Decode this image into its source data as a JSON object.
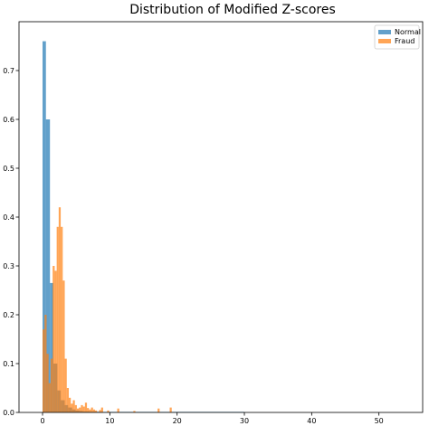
{
  "chart_data": {
    "type": "histogram",
    "title": "Distribution of Modified Z-scores",
    "xlim": [
      -3.5,
      56.5
    ],
    "ylim": [
      0,
      0.8
    ],
    "x_ticks": [
      0,
      10,
      20,
      30,
      40,
      50
    ],
    "y_ticks": [
      0.0,
      0.1,
      0.2,
      0.3,
      0.4,
      0.5,
      0.6,
      0.7
    ],
    "x_tick_labels": [
      "0",
      "10",
      "20",
      "30",
      "40",
      "50"
    ],
    "y_tick_labels": [
      "0.0",
      "0.1",
      "0.2",
      "0.3",
      "0.4",
      "0.5",
      "0.6",
      "0.7"
    ],
    "legend_position": "top-right",
    "series": [
      {
        "name": "Normal",
        "color": "#1f77b4",
        "opacity": 0.7,
        "bins": [
          {
            "x0": 0.0,
            "x1": 0.5,
            "y": 0.76
          },
          {
            "x0": 0.5,
            "x1": 1.1,
            "y": 0.6
          },
          {
            "x0": 1.1,
            "x1": 1.6,
            "y": 0.265
          },
          {
            "x0": 1.6,
            "x1": 2.2,
            "y": 0.1
          },
          {
            "x0": 2.2,
            "x1": 2.7,
            "y": 0.045
          },
          {
            "x0": 2.7,
            "x1": 3.3,
            "y": 0.025
          },
          {
            "x0": 3.3,
            "x1": 3.8,
            "y": 0.015
          },
          {
            "x0": 3.8,
            "x1": 4.4,
            "y": 0.01
          },
          {
            "x0": 4.4,
            "x1": 4.9,
            "y": 0.006
          },
          {
            "x0": 4.9,
            "x1": 5.5,
            "y": 0.004
          },
          {
            "x0": 5.5,
            "x1": 6.0,
            "y": 0.003
          },
          {
            "x0": 6.0,
            "x1": 7.0,
            "y": 0.002
          },
          {
            "x0": 7.0,
            "x1": 8.5,
            "y": 0.0015
          },
          {
            "x0": 8.5,
            "x1": 10.0,
            "y": 0.001
          },
          {
            "x0": 10.0,
            "x1": 14.0,
            "y": 0.0007
          },
          {
            "x0": 14.0,
            "x1": 20.0,
            "y": 0.0004
          },
          {
            "x0": 20.0,
            "x1": 30.0,
            "y": 0.0002
          }
        ]
      },
      {
        "name": "Fraud",
        "color": "#ff7f0e",
        "opacity": 0.7,
        "bins": [
          {
            "x0": 0.0,
            "x1": 0.3,
            "y": 0.17
          },
          {
            "x0": 0.3,
            "x1": 0.6,
            "y": 0.2
          },
          {
            "x0": 0.6,
            "x1": 0.9,
            "y": 0.12
          },
          {
            "x0": 0.9,
            "x1": 1.2,
            "y": 0.06
          },
          {
            "x0": 1.2,
            "x1": 1.5,
            "y": 0.11
          },
          {
            "x0": 1.5,
            "x1": 1.8,
            "y": 0.3
          },
          {
            "x0": 1.8,
            "x1": 2.1,
            "y": 0.29
          },
          {
            "x0": 2.1,
            "x1": 2.4,
            "y": 0.38
          },
          {
            "x0": 2.4,
            "x1": 2.7,
            "y": 0.42
          },
          {
            "x0": 2.7,
            "x1": 3.0,
            "y": 0.38
          },
          {
            "x0": 3.0,
            "x1": 3.3,
            "y": 0.27
          },
          {
            "x0": 3.3,
            "x1": 3.6,
            "y": 0.11
          },
          {
            "x0": 3.6,
            "x1": 3.9,
            "y": 0.05
          },
          {
            "x0": 3.9,
            "x1": 4.2,
            "y": 0.03
          },
          {
            "x0": 4.2,
            "x1": 4.5,
            "y": 0.018
          },
          {
            "x0": 4.5,
            "x1": 4.8,
            "y": 0.025
          },
          {
            "x0": 4.8,
            "x1": 5.1,
            "y": 0.015
          },
          {
            "x0": 5.1,
            "x1": 5.4,
            "y": 0.008
          },
          {
            "x0": 5.4,
            "x1": 5.7,
            "y": 0.01
          },
          {
            "x0": 5.7,
            "x1": 6.0,
            "y": 0.015
          },
          {
            "x0": 6.0,
            "x1": 6.3,
            "y": 0.012
          },
          {
            "x0": 6.3,
            "x1": 6.6,
            "y": 0.02
          },
          {
            "x0": 6.6,
            "x1": 6.9,
            "y": 0.009
          },
          {
            "x0": 6.9,
            "x1": 7.2,
            "y": 0.006
          },
          {
            "x0": 7.2,
            "x1": 7.5,
            "y": 0.01
          },
          {
            "x0": 7.5,
            "x1": 7.8,
            "y": 0.006
          },
          {
            "x0": 7.8,
            "x1": 8.1,
            "y": 0.004
          },
          {
            "x0": 8.4,
            "x1": 8.7,
            "y": 0.005
          },
          {
            "x0": 8.7,
            "x1": 9.0,
            "y": 0.01
          },
          {
            "x0": 9.6,
            "x1": 9.9,
            "y": 0.004
          },
          {
            "x0": 11.1,
            "x1": 11.4,
            "y": 0.008
          },
          {
            "x0": 13.5,
            "x1": 13.8,
            "y": 0.003
          },
          {
            "x0": 17.1,
            "x1": 17.4,
            "y": 0.008
          },
          {
            "x0": 18.9,
            "x1": 19.2,
            "y": 0.01
          }
        ]
      }
    ]
  }
}
